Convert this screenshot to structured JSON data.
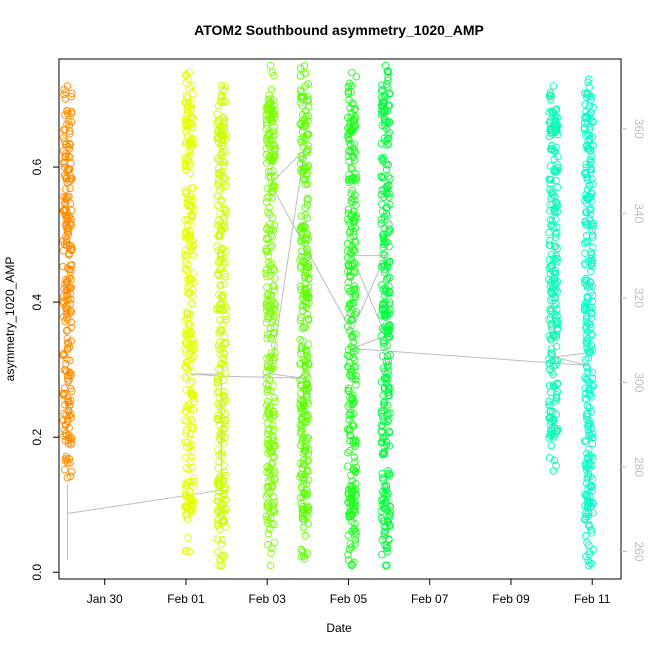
{
  "chart_data": {
    "type": "scatter",
    "title": "ATOM2 Southbound asymmetry_1020_AMP",
    "xlabel": "Date",
    "ylabel": "asymmetry_1020_AMP",
    "x_ticks": [
      "Jan 30",
      "Feb 01",
      "Feb 03",
      "Feb 05",
      "Feb 07",
      "Feb 09",
      "Feb 11"
    ],
    "x_range": [
      "Jan 28 21:00",
      "Feb 11 17:00"
    ],
    "y_ticks": [
      "0.0",
      "0.2",
      "0.4",
      "0.6"
    ],
    "ylim": [
      -0.01,
      0.76
    ],
    "y2_ticks": [
      "260",
      "280",
      "300",
      "320",
      "340",
      "360"
    ],
    "y2lim": [
      253.5,
      376.5
    ],
    "grid": false,
    "marker": "open-circle",
    "series": [
      {
        "x": "Jan 29 02:00",
        "ymin": 0.14,
        "ymax": 0.72,
        "color": "#ff8c00"
      },
      {
        "x": "Feb 01 02:00",
        "ymin": 0.03,
        "ymax": 0.74,
        "color": "#e4ff00"
      },
      {
        "x": "Feb 01 21:00",
        "ymin": 0.01,
        "ymax": 0.72,
        "color": "#ccff00"
      },
      {
        "x": "Feb 03 02:00",
        "ymin": 0.01,
        "ymax": 0.75,
        "color": "#7dff00"
      },
      {
        "x": "Feb 03 22:00",
        "ymin": 0.02,
        "ymax": 0.75,
        "color": "#5cff00"
      },
      {
        "x": "Feb 05 02:00",
        "ymin": 0.01,
        "ymax": 0.74,
        "color": "#1eff1e"
      },
      {
        "x": "Feb 05 22:00",
        "ymin": 0.01,
        "ymax": 0.75,
        "color": "#00ff3c"
      },
      {
        "x": "Feb 10 01:00",
        "ymin": 0.15,
        "ymax": 0.72,
        "color": "#00ffb4"
      },
      {
        "x": "Feb 10 22:00",
        "ymin": 0.01,
        "ymax": 0.73,
        "color": "#00ffc8"
      }
    ],
    "secondary_line": {
      "color": "#bdbdbd",
      "x": [
        "Jan 29 02:00",
        "Jan 29 02:00",
        "Jan 29 02:00",
        "Feb 01 21:00",
        "Feb 01 21:00",
        "Feb 01 02:00",
        "Feb 01 21:00",
        "Feb 03 22:00",
        "Feb 03 02:00",
        "Feb 03 22:00",
        "Feb 03 02:00",
        "Feb 05 02:00",
        "Feb 05 22:00",
        "Feb 05 02:00",
        "Feb 05 22:00",
        "Feb 05 02:00",
        "Feb 10 22:00",
        "Feb 10 01:00",
        "Feb 10 22:00"
      ],
      "y": [
        258,
        276,
        269,
        274.5,
        302,
        302,
        301.5,
        301,
        302,
        355,
        347,
        312,
        330,
        330,
        311,
        308,
        304,
        306,
        307
      ]
    }
  }
}
